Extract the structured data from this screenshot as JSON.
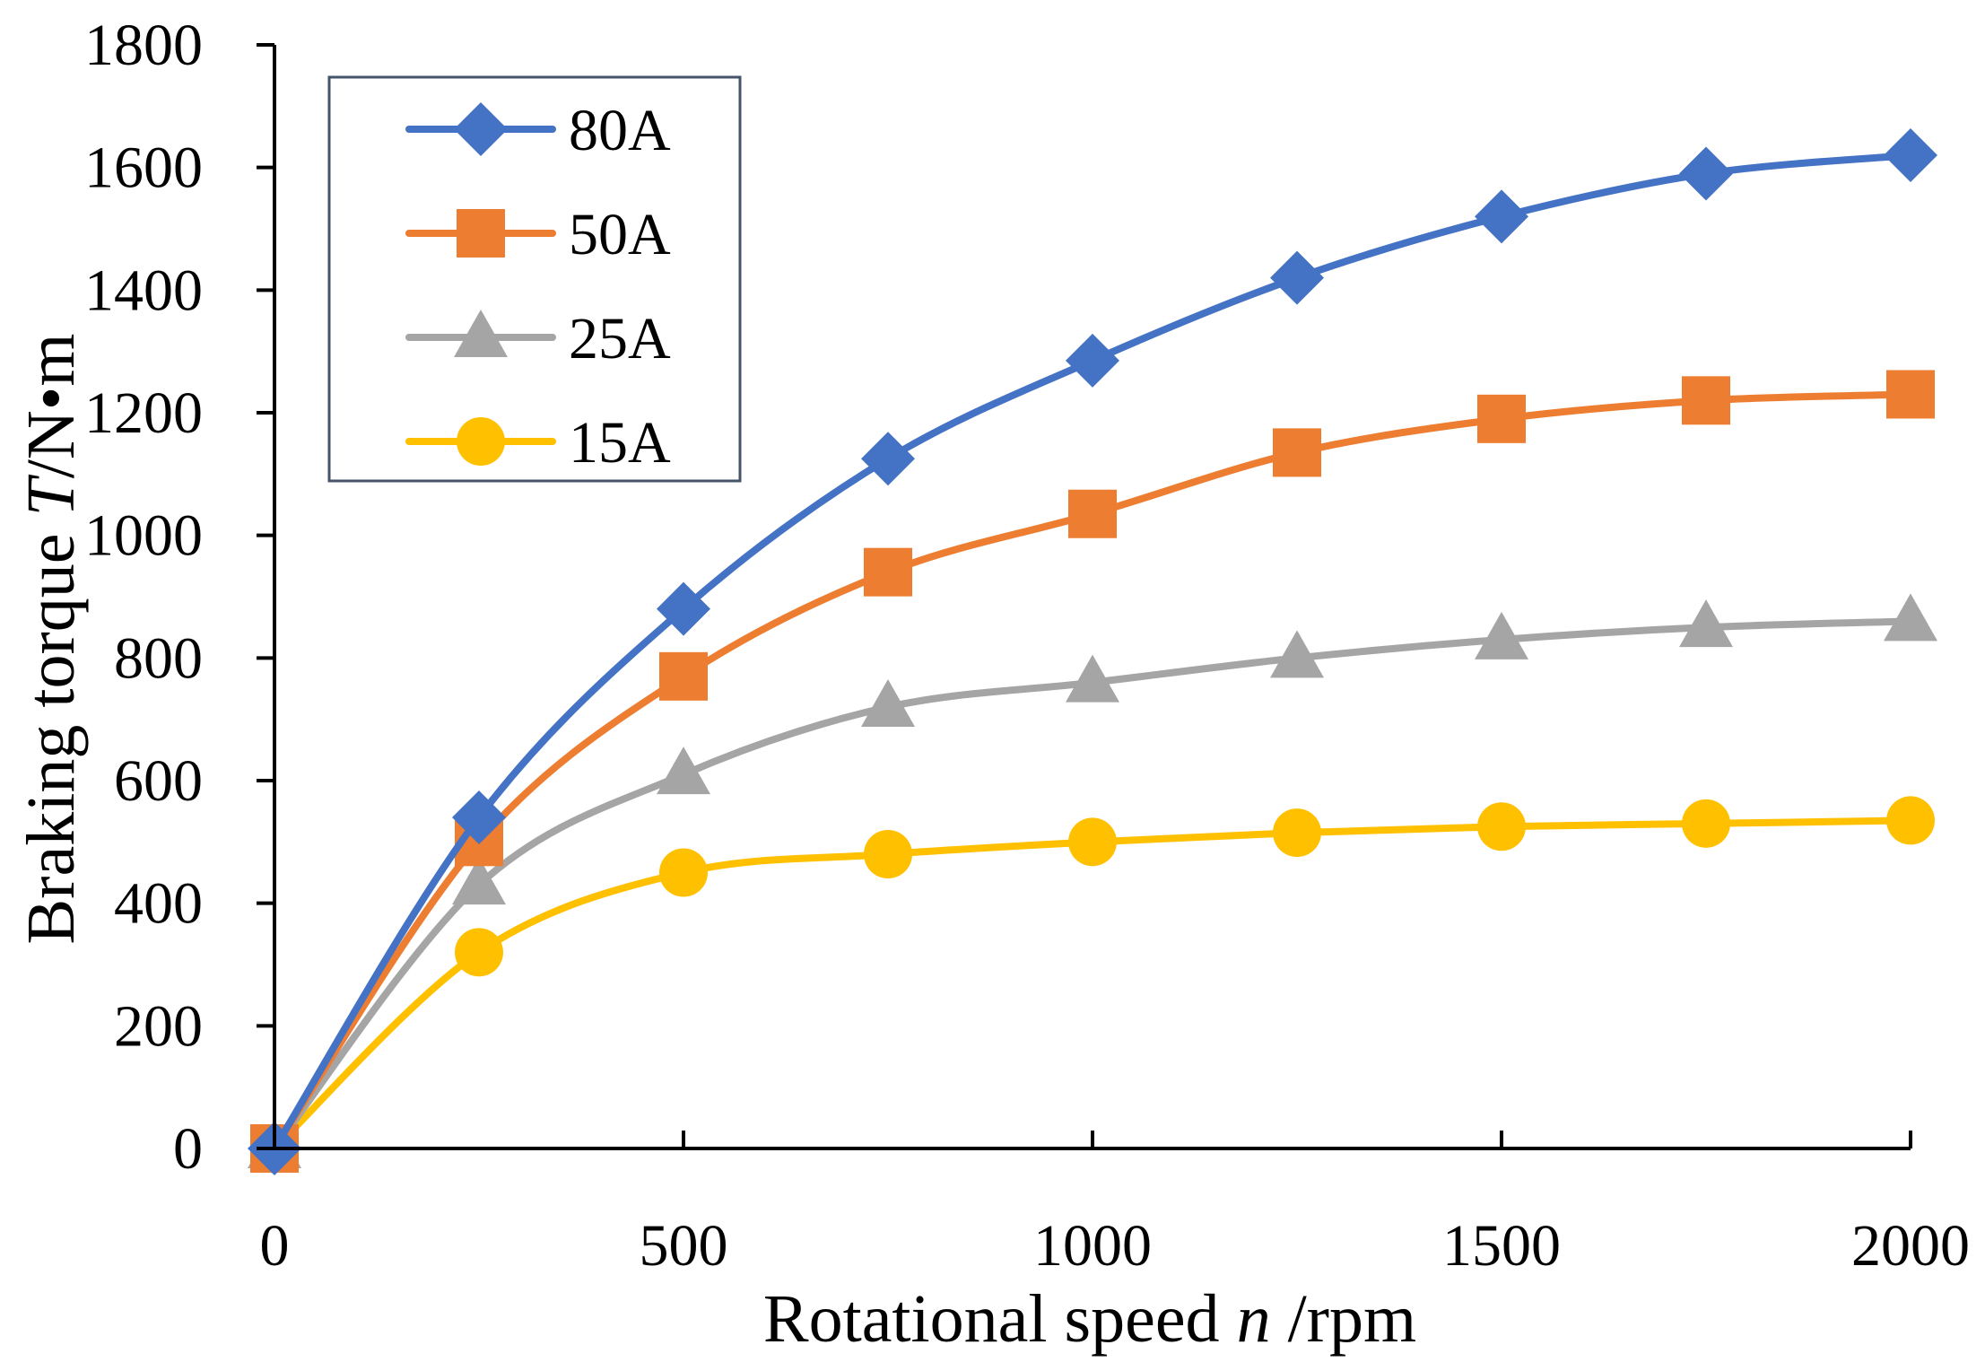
{
  "chart_data": {
    "type": "line",
    "title": "",
    "xlabel": "Rotational speed n /rpm",
    "xlabel_parts": {
      "prefix": "Rotational speed ",
      "var": "n",
      "suffix": " /rpm"
    },
    "ylabel": "Braking torque T/N•m",
    "ylabel_parts": {
      "prefix": "Braking torque ",
      "var": "T",
      "suffix": "/N•m"
    },
    "xlim": [
      0,
      2000
    ],
    "ylim": [
      0,
      1800
    ],
    "xticks": [
      0,
      500,
      1000,
      1500,
      2000
    ],
    "yticks": [
      0,
      200,
      400,
      600,
      800,
      1000,
      1200,
      1400,
      1600,
      1800
    ],
    "xtick_labels": [
      "0",
      "500",
      "1000",
      "1500",
      "2000"
    ],
    "ytick_labels": [
      "0",
      "200",
      "400",
      "600",
      "800",
      "1000",
      "1200",
      "1400",
      "1600",
      "1800"
    ],
    "grid": false,
    "legend_position": "top-left",
    "x": [
      0,
      250,
      500,
      750,
      1000,
      1250,
      1500,
      1750,
      2000
    ],
    "series": [
      {
        "name": "80A",
        "color": "#4472C4",
        "marker": "diamond",
        "values": [
          0,
          540,
          880,
          1125,
          1285,
          1420,
          1520,
          1590,
          1620
        ]
      },
      {
        "name": "50A",
        "color": "#ED7D31",
        "marker": "square",
        "values": [
          0,
          500,
          770,
          940,
          1035,
          1135,
          1190,
          1220,
          1230
        ]
      },
      {
        "name": "25A",
        "color": "#A5A5A5",
        "marker": "triangle",
        "values": [
          0,
          430,
          610,
          720,
          760,
          800,
          830,
          850,
          860
        ]
      },
      {
        "name": "15A",
        "color": "#FFC000",
        "marker": "circle",
        "values": [
          0,
          320,
          450,
          480,
          500,
          515,
          525,
          530,
          535
        ]
      }
    ]
  }
}
